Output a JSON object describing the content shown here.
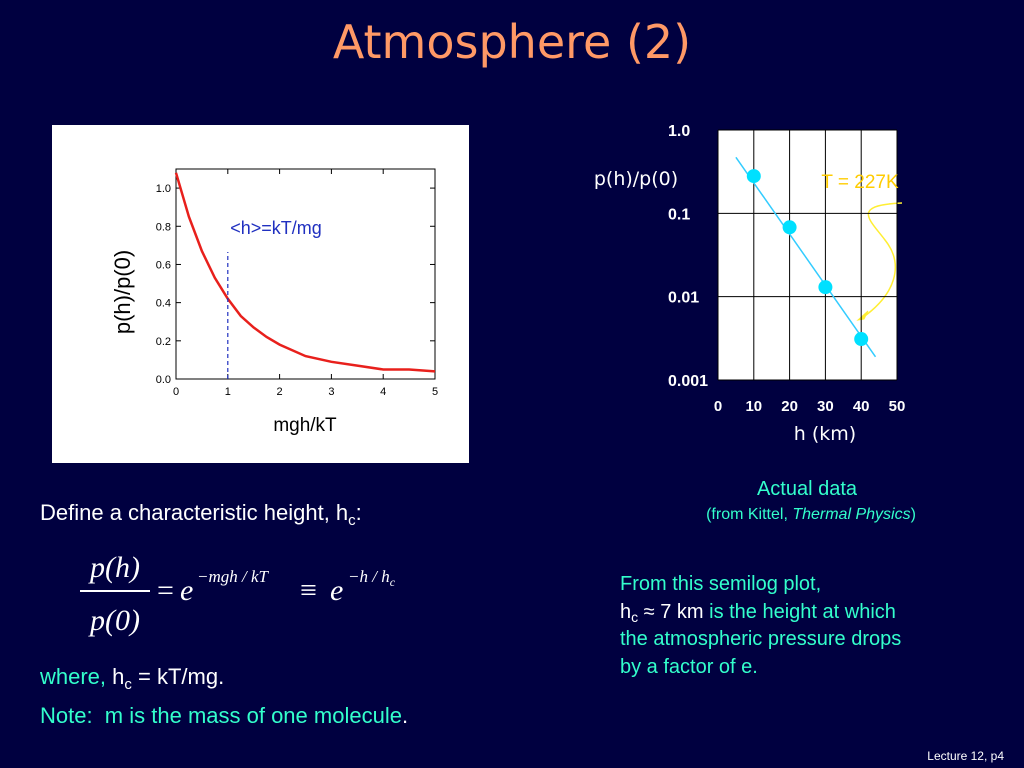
{
  "slide": {
    "title": "Atmosphere (2)",
    "define": {
      "text": "Define a characteristic height, h",
      "sub": "c",
      "end": ":"
    },
    "equation": {
      "numerator": "p(h)",
      "denominator": "p(0)",
      "equals": "=",
      "base1": "e",
      "exp1": "−mgh / kT",
      "equiv": "≡",
      "base2": "e",
      "exp2": "−h / h",
      "exp2_sub": "c"
    },
    "where": {
      "lead": "where, ",
      "text": "h",
      "sub": "c",
      "rest": " = kT/mg."
    },
    "note": {
      "text": "Note:  m is the mass of one molecule",
      "end": "."
    },
    "caption": {
      "line1": "Actual data",
      "open": "(from Kittel, ",
      "book": "Thermal Physics",
      "close": ")"
    },
    "comment": {
      "line1": "From this semilog plot,",
      "h": "h",
      "sub": "c",
      "approx": " ≈ 7 km",
      "rest": " is the height at which",
      "line3": "the atmospheric pressure drops",
      "line4": "by a factor of e."
    },
    "footer": "Lecture 12, p4"
  },
  "chart_data": [
    {
      "type": "line",
      "x": [
        0,
        0.25,
        0.5,
        0.75,
        1,
        1.25,
        1.5,
        1.75,
        2,
        2.5,
        3,
        3.5,
        4,
        4.5,
        5
      ],
      "series": [
        {
          "color": "#e8201c",
          "values": [
            1.08,
            0.85,
            0.67,
            0.53,
            0.42,
            0.33,
            0.27,
            0.22,
            0.18,
            0.12,
            0.09,
            0.07,
            0.05,
            0.05,
            0.04
          ]
        }
      ],
      "xlim": [
        0,
        5
      ],
      "ylim": [
        0,
        1.1
      ],
      "xticks": [
        0,
        1,
        2,
        3,
        4,
        5
      ],
      "yticks": [
        {
          "value": 0,
          "label": "0.0"
        },
        0.2,
        0.4,
        0.6,
        0.8,
        {
          "value": 1,
          "label": "1.0"
        }
      ],
      "xlabel": "mgh/kT",
      "ylabel": "p(h)/p(0)",
      "annotation": "<h>=kT/mg",
      "marker_x": 1,
      "marker_color": "#2030c0"
    },
    {
      "type": "scatter",
      "x": [
        10,
        20,
        30,
        40
      ],
      "series": [
        {
          "color": "#00e0ff",
          "values": [
            0.28,
            0.068,
            0.013,
            0.0031
          ]
        }
      ],
      "fit": {
        "color": "#33ccff",
        "x": [
          5,
          44
        ],
        "values": [
          0.47,
          0.0019
        ]
      },
      "xlim": [
        0,
        50
      ],
      "ylim": [
        0.001,
        1
      ],
      "log_y": true,
      "grid": true,
      "xticks": [
        0,
        10,
        20,
        30,
        40,
        50
      ],
      "yticks": [
        0.001,
        0.01,
        0.1,
        {
          "value": 1,
          "label": "1.0"
        }
      ],
      "xlabel": "h (km)",
      "ylabel": "p(h)/p(0)",
      "annotation": "T = 227K",
      "annotation_color": "#ffcc00"
    }
  ]
}
